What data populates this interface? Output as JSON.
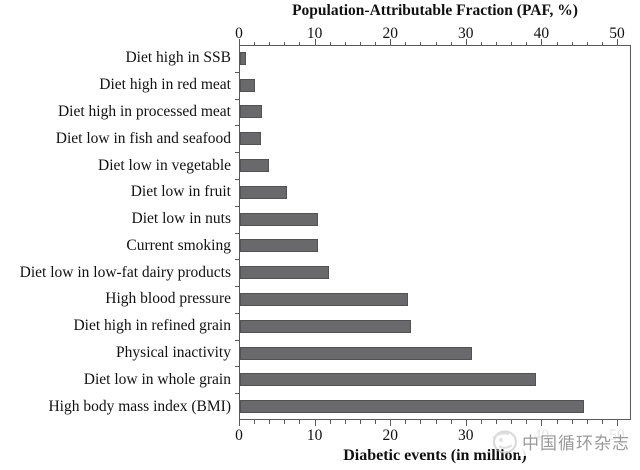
{
  "figure": {
    "background": "#ffffff",
    "text_color": "#111111"
  },
  "watermark": {
    "text": "中国循环杂志",
    "logo_icon": "journal-ring-logo",
    "color": "#9a9a9a",
    "logo_color": "#bdbdbd"
  },
  "chart_data": {
    "type": "bar",
    "orientation": "horizontal",
    "title": "",
    "top_axis": {
      "title": "Population-Attributable Fraction (PAF, %)",
      "min": 0,
      "max": 50,
      "major_tick": 10,
      "minor_tick": 2,
      "tick_labels": [
        "0",
        "10",
        "20",
        "30",
        "40",
        "50"
      ]
    },
    "bottom_axis": {
      "title": "Diabetic events (in million)",
      "min": 0,
      "max": 50,
      "major_tick": 10,
      "minor_tick": 2,
      "tick_labels": [
        "0",
        "10",
        "20",
        "30",
        "40",
        "50"
      ]
    },
    "categories": [
      "Diet high in SSB",
      "Diet high in red meat",
      "Diet high in processed meat",
      "Diet low in fish and seafood",
      "Diet low in vegetable",
      "Diet low in fruit",
      "Diet low in nuts",
      "Current smoking",
      "Diet low in low-fat dairy products",
      "High blood pressure",
      "Diet high in refined grain",
      "Physical inactivity",
      "Diet low in whole grain",
      "High body mass index (BMI)"
    ],
    "values": [
      0.9,
      2.1,
      3.1,
      2.9,
      4.0,
      6.4,
      10.5,
      10.4,
      11.9,
      22.4,
      22.8,
      30.8,
      39.3,
      45.6
    ],
    "bar_color": "#69696b",
    "bar_border_color": "#525252",
    "axis_color": "#595959",
    "grid": false,
    "legend": false
  }
}
